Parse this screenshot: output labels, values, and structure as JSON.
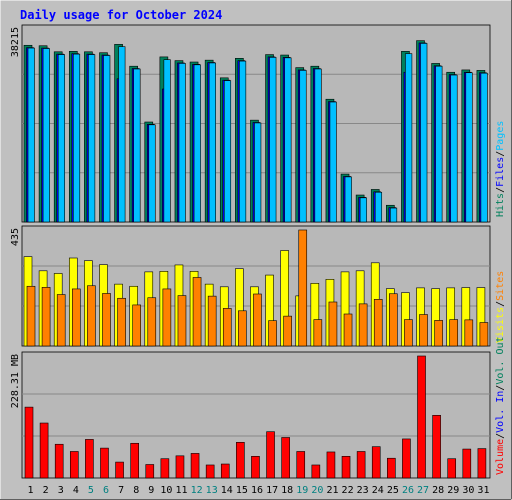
{
  "title": "Daily usage for October 2024",
  "colors": {
    "background": "#c0c0c0",
    "panel": "#b8b8b8",
    "grid": "#888888",
    "title": "#0000ff",
    "hits": "#00805c",
    "files": "#0000ff",
    "pages": "#00c0ff",
    "visits": "#ffff00",
    "sites": "#ff8000",
    "kbytes": "#ff0000",
    "day_weekday": "#000000",
    "day_weekend": "#008080"
  },
  "chart_data": [
    {
      "type": "bar",
      "title": "Daily usage for October 2024",
      "ylabel": "38215",
      "ylim": [
        0,
        41500
      ],
      "categories": [
        "1",
        "2",
        "3",
        "4",
        "5",
        "6",
        "7",
        "8",
        "9",
        "10",
        "11",
        "12",
        "13",
        "14",
        "15",
        "16",
        "17",
        "18",
        "19",
        "20",
        "21",
        "22",
        "23",
        "24",
        "25",
        "26",
        "27",
        "28",
        "29",
        "30",
        "31"
      ],
      "weekend_days": [
        "5",
        "6",
        "12",
        "13",
        "19",
        "20",
        "26",
        "27"
      ],
      "legend": [
        "Hits",
        "/",
        "Files",
        "/",
        "Pages"
      ],
      "series": [
        {
          "name": "Hits",
          "values": [
            38000,
            37900,
            36600,
            36700,
            36600,
            36400,
            38200,
            33500,
            21500,
            35500,
            34700,
            34400,
            34800,
            31000,
            35200,
            21900,
            36000,
            35900,
            33200,
            33500,
            26400,
            10300,
            5800,
            7000,
            3600,
            36700,
            39000,
            34100,
            32200,
            32700,
            32600
          ]
        },
        {
          "name": "Files",
          "values": [
            37500,
            37400,
            36100,
            36200,
            36100,
            35900,
            30800,
            33000,
            21000,
            28600,
            34200,
            33900,
            34300,
            30500,
            34700,
            21400,
            35500,
            35400,
            32700,
            33000,
            25900,
            9800,
            5300,
            6500,
            3100,
            32200,
            38500,
            33600,
            31700,
            32200,
            32100
          ]
        },
        {
          "name": "Pages",
          "values": [
            37400,
            37300,
            36000,
            36100,
            36000,
            35800,
            37700,
            32900,
            20900,
            34900,
            34100,
            33800,
            34200,
            30400,
            34600,
            21300,
            35400,
            35300,
            32600,
            32900,
            25800,
            9700,
            5200,
            6400,
            3000,
            36200,
            38400,
            33500,
            31600,
            32100,
            32000
          ]
        }
      ]
    },
    {
      "type": "bar",
      "ylabel": "435",
      "ylim": [
        0,
        435
      ],
      "legend": [
        "Visits",
        "/",
        "Sites"
      ],
      "series": [
        {
          "name": "Visits",
          "values": [
            335,
            282,
            272,
            330,
            320,
            305,
            232,
            224,
            278,
            280,
            304,
            280,
            232,
            222,
            290,
            222,
            266,
            358,
            188,
            235,
            250,
            278,
            282,
            312,
            215,
            200,
            218,
            215,
            218,
            219,
            219
          ]
        },
        {
          "name": "Sites",
          "values": [
            224,
            220,
            193,
            214,
            226,
            197,
            179,
            154,
            181,
            214,
            189,
            257,
            187,
            141,
            132,
            195,
            95,
            112,
            435,
            99,
            165,
            120,
            158,
            175,
            196,
            99,
            118,
            96,
            99,
            98,
            88
          ]
        }
      ]
    },
    {
      "type": "bar",
      "ylabel": "228.31 MB",
      "ylim": [
        0,
        253
      ],
      "legend": [
        "Volume",
        "/",
        "Vol. In",
        "/",
        "Vol. Out"
      ],
      "series": [
        {
          "name": "Volume",
          "values": [
            147,
            114,
            70,
            55,
            80,
            62,
            33,
            72,
            28,
            40,
            46,
            51,
            27,
            29,
            74,
            45,
            96,
            84,
            55,
            27,
            54,
            45,
            55,
            65,
            41,
            81,
            253,
            130,
            40,
            60,
            61
          ]
        }
      ]
    }
  ]
}
